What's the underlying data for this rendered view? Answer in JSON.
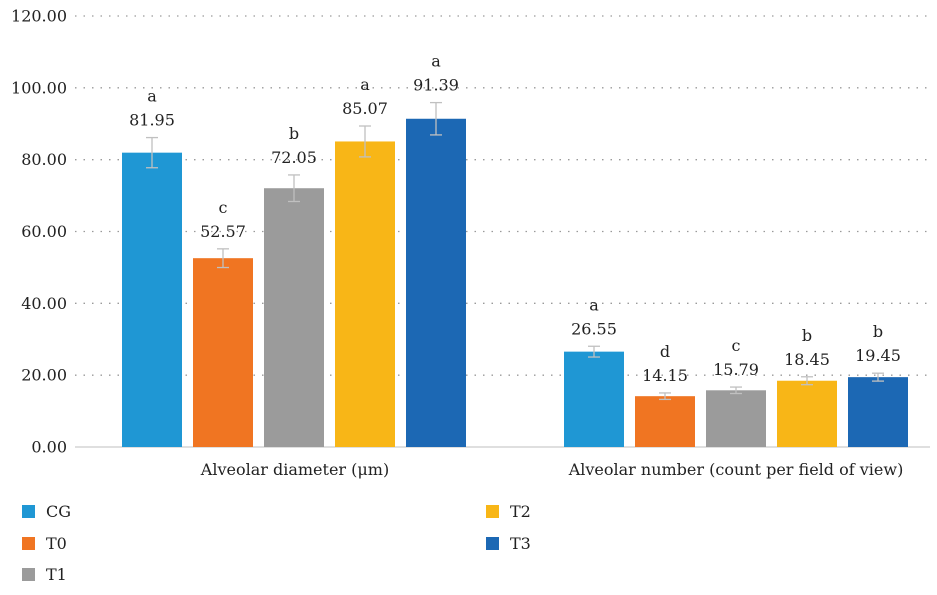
{
  "chart_data": {
    "type": "bar",
    "title": "",
    "xlabel": "",
    "ylabel": "",
    "ylim": [
      0,
      120
    ],
    "yticks": [
      "0.00",
      "20.00",
      "40.00",
      "60.00",
      "80.00",
      "100.00",
      "120.00"
    ],
    "grid": "horizontal dotted",
    "legend_position": "bottom-left",
    "categories": [
      "Alveolar diameter (μm)",
      "Alveolar number (count per field of view)"
    ],
    "series": [
      {
        "name": "CG",
        "color": "#1F97D4",
        "values": [
          81.95,
          26.55
        ],
        "value_labels": [
          "81.95",
          "26.55"
        ],
        "errors": [
          4.2,
          1.5
        ],
        "significance": [
          "a",
          "a"
        ]
      },
      {
        "name": "T0",
        "color": "#F07522",
        "values": [
          52.57,
          14.15
        ],
        "value_labels": [
          "52.57",
          "14.15"
        ],
        "errors": [
          2.6,
          0.9
        ],
        "significance": [
          "c",
          "d"
        ]
      },
      {
        "name": "T1",
        "color": "#9B9B9B",
        "values": [
          72.05,
          15.79
        ],
        "value_labels": [
          "72.05",
          "15.79"
        ],
        "errors": [
          3.7,
          0.9
        ],
        "significance": [
          "b",
          "c"
        ]
      },
      {
        "name": "T2",
        "color": "#F8B617",
        "values": [
          85.07,
          18.45
        ],
        "value_labels": [
          "85.07",
          "18.45"
        ],
        "errors": [
          4.3,
          1.1
        ],
        "significance": [
          "a",
          "b"
        ]
      },
      {
        "name": "T3",
        "color": "#1C68B4",
        "values": [
          91.39,
          19.45
        ],
        "value_labels": [
          "91.39",
          "19.45"
        ],
        "errors": [
          4.5,
          1.1
        ],
        "significance": [
          "a",
          "b"
        ]
      }
    ]
  }
}
